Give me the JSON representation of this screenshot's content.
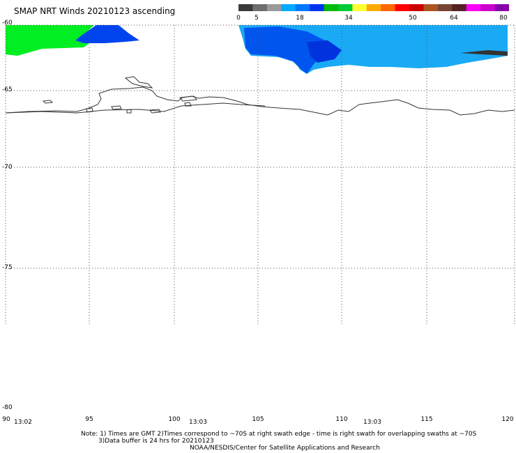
{
  "title": "SMAP NRT Winds 20210123 ascending",
  "legend": {
    "labels": [
      "0",
      "5",
      "18",
      "34",
      "50",
      "64",
      "80"
    ],
    "colors": [
      "#3a3a3a",
      "#6e6e6e",
      "#9a9a9a",
      "#00aaff",
      "#0077ff",
      "#0033ee",
      "#00bb00",
      "#00cc33",
      "#ffff33",
      "#ffaa00",
      "#ff6600",
      "#ff0000",
      "#cc0000",
      "#aa5522",
      "#774433",
      "#552222",
      "#ff00ff",
      "#cc00cc",
      "#8800aa"
    ]
  },
  "axes": {
    "lat_labels": [
      "-60",
      "-65",
      "-70",
      "-75",
      "-80"
    ],
    "lon_labels": [
      "90",
      "95",
      "100",
      "105",
      "110",
      "115",
      "120"
    ]
  },
  "times": [
    "13:02",
    "13:03",
    "13:03"
  ],
  "notes": {
    "line1": "Note: 1) Times are GMT 2)Times correspond to ~70S at right swath edge - time is right swath for overlapping swaths at ~70S",
    "line2": "3)Data buffer is 24 hrs for 20210123",
    "line3": "NOAA/NESDIS/Center for Satellite Applications and Research"
  },
  "colors": {
    "green_swath": "#00ee22",
    "blue_swath": "#0044ee",
    "light_blue_swath": "#1aaaf5",
    "coastline": "#333333"
  }
}
